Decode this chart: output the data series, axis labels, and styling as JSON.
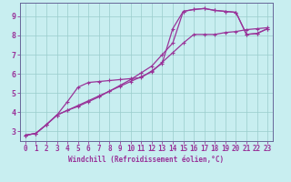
{
  "xlabel": "Windchill (Refroidissement éolien,°C)",
  "bg_color": "#c8eef0",
  "line_color": "#993399",
  "grid_color": "#99cccc",
  "spine_color": "#666699",
  "xlim": [
    -0.5,
    23.5
  ],
  "ylim": [
    2.5,
    9.7
  ],
  "xticks": [
    0,
    1,
    2,
    3,
    4,
    5,
    6,
    7,
    8,
    9,
    10,
    11,
    12,
    13,
    14,
    15,
    16,
    17,
    18,
    19,
    20,
    21,
    22,
    23
  ],
  "yticks": [
    3,
    4,
    5,
    6,
    7,
    8,
    9
  ],
  "line1_x": [
    0,
    1,
    2,
    3,
    4,
    5,
    6,
    7,
    8,
    9,
    10,
    11,
    12,
    13,
    14,
    15,
    16,
    17,
    18,
    19,
    20,
    21,
    22,
    23
  ],
  "line1_y": [
    2.8,
    2.9,
    3.35,
    3.85,
    4.1,
    4.3,
    4.55,
    4.8,
    5.1,
    5.4,
    5.7,
    6.05,
    6.4,
    7.0,
    7.6,
    9.25,
    9.35,
    9.4,
    9.3,
    9.25,
    9.2,
    8.05,
    8.1,
    8.35
  ],
  "line2_x": [
    0,
    1,
    2,
    3,
    4,
    5,
    6,
    7,
    8,
    9,
    10,
    11,
    12,
    13,
    14,
    15,
    16,
    17,
    18,
    19,
    20,
    21,
    22,
    23
  ],
  "line2_y": [
    2.8,
    2.9,
    3.35,
    3.85,
    4.55,
    5.3,
    5.55,
    5.6,
    5.65,
    5.7,
    5.75,
    5.8,
    6.15,
    6.55,
    8.35,
    9.25,
    9.35,
    9.4,
    9.3,
    9.25,
    9.2,
    8.05,
    8.1,
    8.35
  ],
  "line3_x": [
    0,
    1,
    2,
    3,
    4,
    5,
    6,
    7,
    8,
    9,
    10,
    11,
    12,
    13,
    14,
    15,
    16,
    17,
    18,
    19,
    20,
    21,
    22,
    23
  ],
  "line3_y": [
    2.8,
    2.9,
    3.35,
    3.85,
    4.1,
    4.35,
    4.6,
    4.85,
    5.1,
    5.35,
    5.6,
    5.85,
    6.1,
    6.6,
    7.1,
    7.6,
    8.05,
    8.05,
    8.05,
    8.15,
    8.2,
    8.3,
    8.35,
    8.4
  ],
  "markersize": 2.5,
  "linewidth": 0.9,
  "tick_fontsize": 5.5,
  "xlabel_fontsize": 5.5
}
